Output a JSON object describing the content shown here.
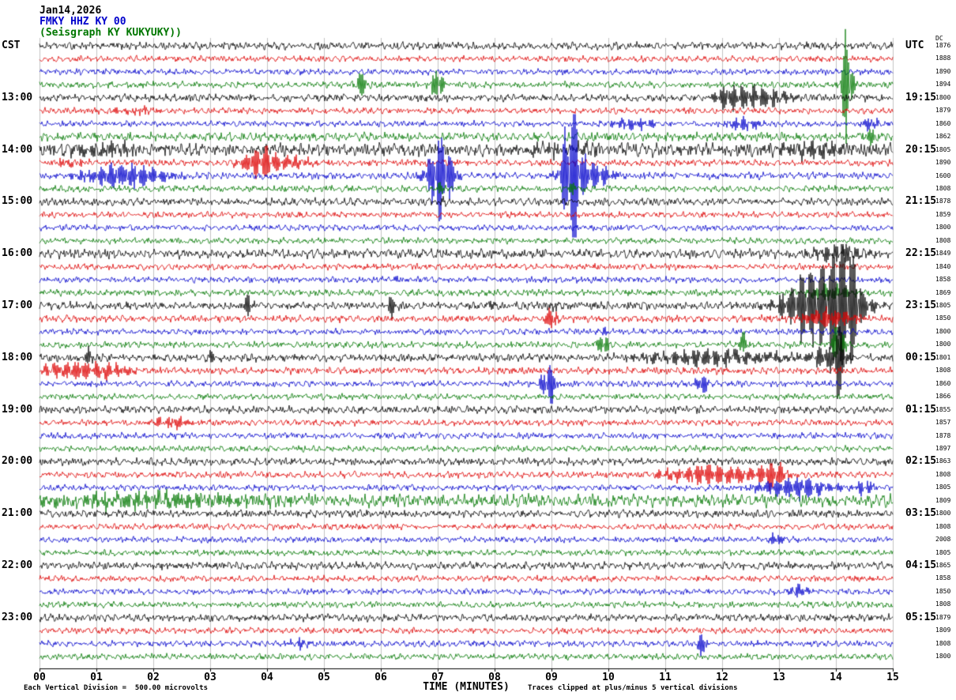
{
  "header": {
    "date": "Jan14,2026",
    "station": "FMKY HHZ KY 00",
    "location": "(Seisgraph KY KUKYUKY))"
  },
  "labels": {
    "left_tz": "CST",
    "right_tz": "UTC",
    "dc": "DC"
  },
  "x_axis": {
    "title": "TIME (MINUTES)",
    "ticks": [
      "00",
      "01",
      "02",
      "03",
      "04",
      "05",
      "06",
      "07",
      "08",
      "09",
      "10",
      "11",
      "12",
      "13",
      "14",
      "15"
    ]
  },
  "footer": {
    "scale_note": "Each Vertical Division =  500.00 microvolts",
    "clip_note": "Traces clipped at plus/minus 5 vertical divisions"
  },
  "chart_data": {
    "type": "line",
    "title": "Helicorder seismogram FMKY HHZ KY 00",
    "xlabel": "TIME (MINUTES)",
    "x_range": [
      0,
      15
    ],
    "minutes_per_line": 15,
    "lines_per_hour": 4,
    "clip_divisions": 5,
    "microvolts_per_division": 500,
    "grid": true,
    "color_cycle": [
      "black",
      "red",
      "blue",
      "green"
    ],
    "trace_colors": {
      "black": "#000000",
      "red": "#dd0000",
      "blue": "#0000cc",
      "green": "#007700"
    },
    "rows": [
      {
        "cst": "",
        "utc": "",
        "value": "1876",
        "base": 3.2,
        "events": []
      },
      {
        "cst": "",
        "utc": "",
        "value": "1888",
        "base": 2.6,
        "events": []
      },
      {
        "cst": "",
        "utc": "",
        "value": "1890",
        "base": 2.6,
        "events": []
      },
      {
        "cst": "",
        "utc": "",
        "value": "1894",
        "base": 2.8,
        "events": [
          {
            "m": 5.65,
            "a": 16,
            "w": 0.06
          },
          {
            "m": 7.0,
            "a": 22,
            "w": 0.07
          },
          {
            "m": 14.2,
            "a": 85,
            "w": 0.06
          }
        ]
      },
      {
        "cst": "13:00",
        "utc": "19:15",
        "value": "1800",
        "base": 3.2,
        "events": [
          {
            "m": 12.5,
            "a": 12,
            "w": 0.45
          },
          {
            "m": 12.05,
            "a": 8,
            "w": 0.1
          }
        ]
      },
      {
        "cst": "",
        "utc": "",
        "value": "1879",
        "base": 2.6,
        "events": [
          {
            "m": 1.7,
            "a": 4,
            "w": 0.3
          }
        ]
      },
      {
        "cst": "",
        "utc": "",
        "value": "1860",
        "base": 2.6,
        "events": [
          {
            "m": 10.4,
            "a": 7,
            "w": 0.3
          },
          {
            "m": 12.4,
            "a": 9,
            "w": 0.18
          },
          {
            "m": 14.6,
            "a": 7,
            "w": 0.12
          }
        ]
      },
      {
        "cst": "",
        "utc": "",
        "value": "1862",
        "base": 3.6,
        "events": [
          {
            "m": 14.6,
            "a": 8,
            "w": 0.1
          }
        ]
      },
      {
        "cst": "14:00",
        "utc": "20:15",
        "value": "1805",
        "base": 5.5,
        "events": [
          {
            "m": 1.0,
            "a": 6,
            "w": 0.6
          },
          {
            "m": 9.2,
            "a": 5,
            "w": 0.5
          },
          {
            "m": 13.6,
            "a": 8,
            "w": 0.5
          }
        ]
      },
      {
        "cst": "",
        "utc": "",
        "value": "1890",
        "base": 2.8,
        "events": [
          {
            "m": 3.9,
            "a": 14,
            "w": 0.22
          },
          {
            "m": 4.3,
            "a": 6,
            "w": 0.5
          },
          {
            "m": 0.5,
            "a": 5,
            "w": 0.2
          }
        ]
      },
      {
        "cst": "",
        "utc": "",
        "value": "1600",
        "base": 3.0,
        "events": [
          {
            "m": 1.5,
            "a": 15,
            "w": 0.5
          },
          {
            "m": 7.05,
            "a": 48,
            "w": 0.16
          },
          {
            "m": 9.35,
            "a": 85,
            "w": 0.1
          },
          {
            "m": 9.6,
            "a": 20,
            "w": 0.3
          }
        ]
      },
      {
        "cst": "",
        "utc": "",
        "value": "1808",
        "base": 2.8,
        "events": [
          {
            "m": 7.05,
            "a": 6,
            "w": 0.08
          },
          {
            "m": 9.35,
            "a": 8,
            "w": 0.06
          }
        ]
      },
      {
        "cst": "15:00",
        "utc": "21:15",
        "value": "1878",
        "base": 3.2,
        "events": [
          {
            "m": 7.05,
            "a": 6,
            "w": 0.05
          }
        ]
      },
      {
        "cst": "",
        "utc": "",
        "value": "1859",
        "base": 2.6,
        "events": []
      },
      {
        "cst": "",
        "utc": "",
        "value": "1800",
        "base": 2.6,
        "events": []
      },
      {
        "cst": "",
        "utc": "",
        "value": "1808",
        "base": 2.6,
        "events": []
      },
      {
        "cst": "16:00",
        "utc": "22:15",
        "value": "1849",
        "base": 4.0,
        "events": [
          {
            "m": 14.0,
            "a": 9,
            "w": 0.3
          }
        ]
      },
      {
        "cst": "",
        "utc": "",
        "value": "1840",
        "base": 2.6,
        "events": []
      },
      {
        "cst": "",
        "utc": "",
        "value": "1858",
        "base": 2.6,
        "events": [
          {
            "m": 6.3,
            "a": 4,
            "w": 0.1
          }
        ]
      },
      {
        "cst": "",
        "utc": "",
        "value": "1869",
        "base": 2.8,
        "events": [
          {
            "m": 13.9,
            "a": 10,
            "w": 0.25
          }
        ]
      },
      {
        "cst": "17:00",
        "utc": "23:15",
        "value": "1805",
        "base": 3.4,
        "events": [
          {
            "m": 3.65,
            "a": 14,
            "w": 0.05
          },
          {
            "m": 6.2,
            "a": 14,
            "w": 0.05
          },
          {
            "m": 7.9,
            "a": 8,
            "w": 0.05
          },
          {
            "m": 9.0,
            "a": 6,
            "w": 0.05
          },
          {
            "m": 13.75,
            "a": 55,
            "w": 0.4
          },
          {
            "m": 14.2,
            "a": 55,
            "w": 0.15
          }
        ]
      },
      {
        "cst": "",
        "utc": "",
        "value": "1850",
        "base": 3.0,
        "events": [
          {
            "m": 9.0,
            "a": 16,
            "w": 0.07
          },
          {
            "m": 13.9,
            "a": 12,
            "w": 0.3
          }
        ]
      },
      {
        "cst": "",
        "utc": "",
        "value": "1800",
        "base": 2.6,
        "events": [
          {
            "m": 9.9,
            "a": 4,
            "w": 0.08
          }
        ]
      },
      {
        "cst": "",
        "utc": "",
        "value": "1800",
        "base": 2.8,
        "events": [
          {
            "m": 9.9,
            "a": 16,
            "w": 0.06
          },
          {
            "m": 12.4,
            "a": 14,
            "w": 0.06
          },
          {
            "m": 14.05,
            "a": 30,
            "w": 0.07
          }
        ]
      },
      {
        "cst": "18:00",
        "utc": "00:15",
        "value": "1801",
        "base": 3.4,
        "events": [
          {
            "m": 0.85,
            "a": 12,
            "w": 0.06
          },
          {
            "m": 3.0,
            "a": 7,
            "w": 0.06
          },
          {
            "m": 11.8,
            "a": 9,
            "w": 0.9
          },
          {
            "m": 13.9,
            "a": 13,
            "w": 0.25
          },
          {
            "m": 14.05,
            "a": 45,
            "w": 0.05
          }
        ]
      },
      {
        "cst": "",
        "utc": "",
        "value": "1808",
        "base": 3.0,
        "events": [
          {
            "m": 0.8,
            "a": 10,
            "w": 0.55
          }
        ]
      },
      {
        "cst": "",
        "utc": "",
        "value": "1860",
        "base": 2.6,
        "events": [
          {
            "m": 8.95,
            "a": 26,
            "w": 0.09
          },
          {
            "m": 11.65,
            "a": 15,
            "w": 0.07
          }
        ]
      },
      {
        "cst": "",
        "utc": "",
        "value": "1866",
        "base": 2.6,
        "events": []
      },
      {
        "cst": "19:00",
        "utc": "01:15",
        "value": "1855",
        "base": 3.2,
        "events": []
      },
      {
        "cst": "",
        "utc": "",
        "value": "1857",
        "base": 2.6,
        "events": [
          {
            "m": 2.3,
            "a": 6,
            "w": 0.3
          }
        ]
      },
      {
        "cst": "",
        "utc": "",
        "value": "1878",
        "base": 2.6,
        "events": []
      },
      {
        "cst": "",
        "utc": "",
        "value": "1897",
        "base": 2.6,
        "events": []
      },
      {
        "cst": "20:00",
        "utc": "02:15",
        "value": "1863",
        "base": 3.2,
        "events": []
      },
      {
        "cst": "",
        "utc": "",
        "value": "1808",
        "base": 2.8,
        "events": [
          {
            "m": 11.9,
            "a": 12,
            "w": 0.6
          },
          {
            "m": 12.9,
            "a": 14,
            "w": 0.15
          }
        ]
      },
      {
        "cst": "",
        "utc": "",
        "value": "1805",
        "base": 2.6,
        "events": [
          {
            "m": 13.3,
            "a": 12,
            "w": 0.45
          },
          {
            "m": 14.5,
            "a": 9,
            "w": 0.1
          }
        ]
      },
      {
        "cst": "",
        "utc": "",
        "value": "1809",
        "base": 5.5,
        "events": [
          {
            "m": 2.0,
            "a": 7,
            "w": 1.6
          }
        ]
      },
      {
        "cst": "21:00",
        "utc": "03:15",
        "value": "1800",
        "base": 3.2,
        "events": []
      },
      {
        "cst": "",
        "utc": "",
        "value": "1808",
        "base": 2.6,
        "events": []
      },
      {
        "cst": "",
        "utc": "",
        "value": "2008",
        "base": 2.6,
        "events": [
          {
            "m": 12.95,
            "a": 8,
            "w": 0.12
          }
        ]
      },
      {
        "cst": "",
        "utc": "",
        "value": "1805",
        "base": 2.6,
        "events": []
      },
      {
        "cst": "22:00",
        "utc": "04:15",
        "value": "1865",
        "base": 3.2,
        "events": []
      },
      {
        "cst": "",
        "utc": "",
        "value": "1858",
        "base": 2.6,
        "events": []
      },
      {
        "cst": "",
        "utc": "",
        "value": "1850",
        "base": 2.6,
        "events": [
          {
            "m": 13.35,
            "a": 8,
            "w": 0.12
          }
        ]
      },
      {
        "cst": "",
        "utc": "",
        "value": "1808",
        "base": 2.6,
        "events": []
      },
      {
        "cst": "23:00",
        "utc": "05:15",
        "value": "1879",
        "base": 3.2,
        "events": []
      },
      {
        "cst": "",
        "utc": "",
        "value": "1809",
        "base": 2.6,
        "events": []
      },
      {
        "cst": "",
        "utc": "",
        "value": "1808",
        "base": 2.6,
        "events": [
          {
            "m": 4.6,
            "a": 5,
            "w": 0.15
          },
          {
            "m": 11.65,
            "a": 13,
            "w": 0.06
          }
        ]
      },
      {
        "cst": "",
        "utc": "",
        "value": "1800",
        "base": 2.6,
        "events": []
      }
    ]
  }
}
